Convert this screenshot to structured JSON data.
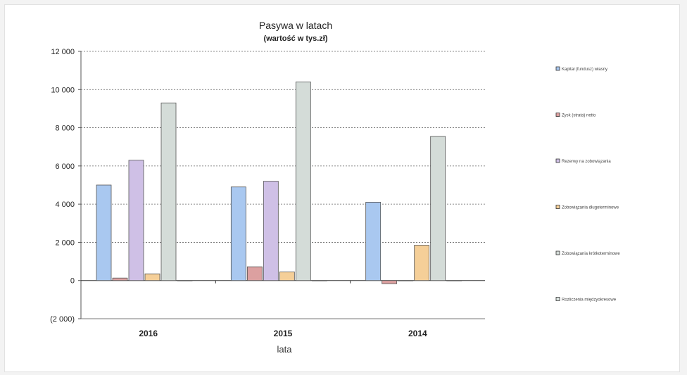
{
  "chart_data": {
    "type": "bar",
    "title": "Pasywa w latach",
    "subtitle": "(wartość w tys.zł)",
    "xlabel": "lata",
    "ylabel": "",
    "categories": [
      "2016",
      "2015",
      "2014"
    ],
    "ylim": [
      -2000,
      12000
    ],
    "yticks": [
      -2000,
      0,
      2000,
      4000,
      6000,
      8000,
      10000,
      12000
    ],
    "ytick_labels": [
      "(2 000)",
      "0",
      "2 000",
      "4 000",
      "6 000",
      "8 000",
      "10 000",
      "12 000"
    ],
    "grid": true,
    "legend_position": "right",
    "series": [
      {
        "name": "Kapitał (fundusz) własny",
        "color": "#a9c8f0",
        "values": [
          5000,
          4900,
          4100
        ]
      },
      {
        "name": "Zysk (strata) netto",
        "color": "#dca0a0",
        "values": [
          130,
          720,
          -170
        ]
      },
      {
        "name": "Rezerwy na zobowiązania",
        "color": "#cfc0e6",
        "values": [
          6300,
          5200,
          0
        ]
      },
      {
        "name": "Zobowiązania długoterminowe",
        "color": "#f5cf98",
        "values": [
          350,
          450,
          1850
        ]
      },
      {
        "name": "Zobowiązania krótkoterminowe",
        "color": "#d4dcd8",
        "values": [
          9300,
          10400,
          7550
        ]
      },
      {
        "name": "Rozliczenia międzyokresowe",
        "color": "#dde6e2",
        "values": [
          0,
          0,
          0
        ]
      }
    ]
  }
}
